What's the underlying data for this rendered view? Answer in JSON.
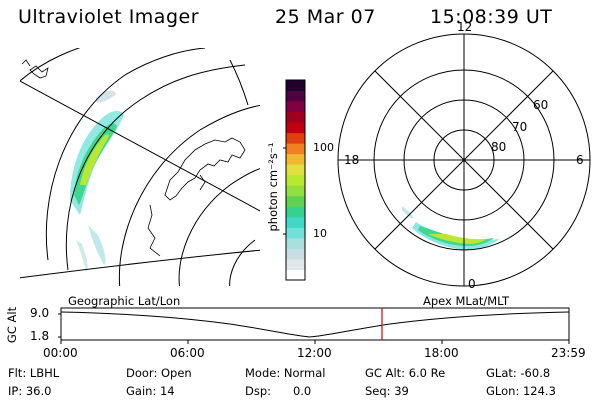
{
  "header": {
    "title": "Ultraviolet Imager",
    "date": "25 Mar 07",
    "time": "15:08:39 UT"
  },
  "colorbar": {
    "unit_label": "photon cm⁻²s⁻¹",
    "tick_100": "100",
    "tick_10": "10",
    "colors": [
      "#ffffff",
      "#e0e8ec",
      "#c8dde4",
      "#a8e0e0",
      "#70e0d8",
      "#40d8c8",
      "#38d090",
      "#60d050",
      "#90e040",
      "#b8e830",
      "#e0e040",
      "#f0b830",
      "#f08020",
      "#e04010",
      "#c00010",
      "#a00020",
      "#800040",
      "#500040",
      "#200030"
    ]
  },
  "polar": {
    "mlt_12": "12",
    "mlt_18": "18",
    "mlt_6": "6",
    "mlt_0": "0",
    "lat_60": "60",
    "lat_70": "70",
    "lat_80": "80"
  },
  "map_labels": {
    "left": "Geographic Lat/Lon",
    "right": "Apex MLat/MLT"
  },
  "alt_plot": {
    "axis_label": "GC Alt",
    "tick_top": "9.0",
    "tick_bottom": "1.8",
    "x_ticks": [
      "00:00",
      "06:00",
      "12:00",
      "18:00",
      "23:59"
    ],
    "marker_color": "#e00000"
  },
  "footer": {
    "flt": "Flt: LBHL",
    "ip": "IP: 36.0",
    "door": "Door: Open",
    "gain": "Gain: 14",
    "mode": "Mode: Normal",
    "dsp": "Dsp:      0.0",
    "gcalt": "GC Alt: 6.0 Re",
    "seq": "Seq: 39",
    "glat": "GLat: -60.8",
    "glon": "GLon: 124.3"
  }
}
